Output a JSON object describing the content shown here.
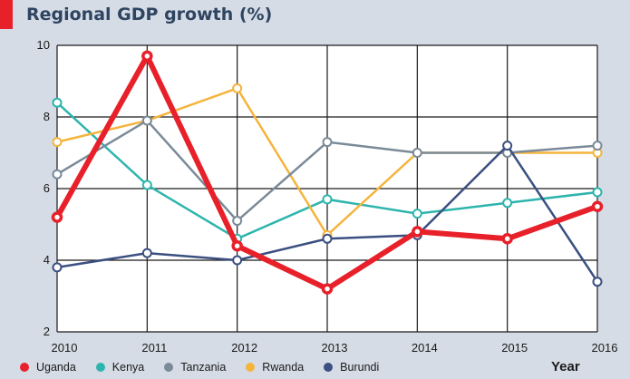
{
  "chart_data": {
    "type": "line",
    "title": "Regional GDP growth (%)",
    "xlabel": "Year",
    "ylabel": "",
    "x": [
      "2010",
      "2011",
      "2012",
      "2013",
      "2014",
      "2015",
      "2016"
    ],
    "yticks": [
      2,
      4,
      6,
      8,
      10
    ],
    "ylim": [
      2,
      10
    ],
    "grid": true,
    "legend_position": "bottom",
    "series": [
      {
        "name": "Kenya",
        "color": "#2db5ad",
        "values": [
          8.4,
          6.1,
          4.6,
          5.7,
          5.3,
          5.6,
          5.9
        ]
      },
      {
        "name": "Rwanda",
        "color": "#f5b43c",
        "values": [
          7.3,
          7.9,
          8.8,
          4.7,
          7.0,
          7.0,
          7.0
        ]
      },
      {
        "name": "Tanzania",
        "color": "#7a8a98",
        "values": [
          6.4,
          7.9,
          5.1,
          7.3,
          7.0,
          7.0,
          7.2
        ]
      },
      {
        "name": "Burundi",
        "color": "#3b4f80",
        "values": [
          3.8,
          4.2,
          4.0,
          4.6,
          4.7,
          7.2,
          3.4
        ]
      },
      {
        "name": "Uganda",
        "color": "#e8202a",
        "values": [
          5.2,
          9.7,
          4.4,
          3.2,
          4.8,
          4.6,
          5.5
        ]
      }
    ],
    "legend_order": [
      "Uganda",
      "Kenya",
      "Tanzania",
      "Rwanda",
      "Burundi"
    ]
  }
}
